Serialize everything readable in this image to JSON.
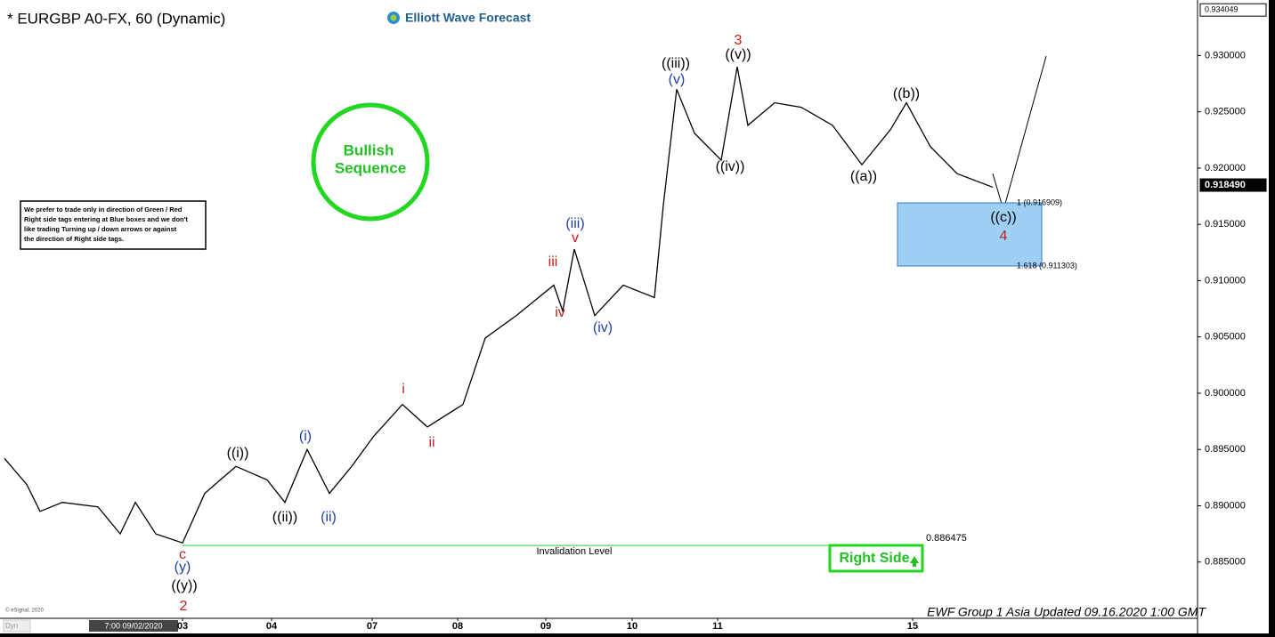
{
  "chart_data": {
    "type": "line",
    "title": "* EURGBP A0-FX, 60 (Dynamic)",
    "brand": "Elliott Wave Forecast",
    "badge": [
      "Bullish",
      "Sequence"
    ],
    "notice": [
      "We prefer to trade only in direction of Green / Red",
      "Right side tags entering at Blue boxes and we don't",
      "like trading Turning up / down arrows or against",
      "the direction of Right side tags."
    ],
    "right_side": "Right Side",
    "footer": "EWF Group 1 Asia Updated 09.16.2020 1:00 GMT",
    "copyright": "© eSignal, 2020",
    "cursor_label": "7:00 09/02/2020",
    "axis_corner": "Dyn",
    "xlim": [
      0,
      336.25
    ],
    "ylim": [
      0.88,
      0.9343
    ],
    "xticks": [
      {
        "value": 51.25,
        "label": "03"
      },
      {
        "value": 76.25,
        "label": "04"
      },
      {
        "value": 104.5,
        "label": "07"
      },
      {
        "value": 128.5,
        "label": "08"
      },
      {
        "value": 153.25,
        "label": "09"
      },
      {
        "value": 177.5,
        "label": "10"
      },
      {
        "value": 201.5,
        "label": "11"
      },
      {
        "value": 256.25,
        "label": "15"
      }
    ],
    "yticks": [
      {
        "value": 0.885,
        "label": "0.885000"
      },
      {
        "value": 0.89,
        "label": "0.890000"
      },
      {
        "value": 0.895,
        "label": "0.895000"
      },
      {
        "value": 0.9,
        "label": "0.900000"
      },
      {
        "value": 0.905,
        "label": "0.905000"
      },
      {
        "value": 0.91,
        "label": "0.910000"
      },
      {
        "value": 0.915,
        "label": "0.915000"
      },
      {
        "value": 0.92,
        "label": "0.920000"
      },
      {
        "value": 0.925,
        "label": "0.925000"
      },
      {
        "value": 0.93,
        "label": "0.930000"
      }
    ],
    "price_tags": [
      {
        "value": 0.934049,
        "label": "0.934049"
      },
      {
        "value": 0.91849,
        "label": "0.918490"
      }
    ],
    "series": [
      {
        "name": "EURGBP",
        "color": "#000000",
        "x": [
          1.25,
          7.5,
          11.25,
          17.5,
          27.5,
          33.75,
          38,
          43.75,
          51.25,
          57.5,
          66.25,
          75,
          80,
          86.25,
          92.5,
          98.75,
          105,
          113,
          120,
          130,
          136.25,
          145,
          155.5,
          158,
          161.25,
          167,
          175,
          183.75,
          186.25,
          190,
          195,
          202.5,
          207,
          210,
          217.5,
          225,
          233.75,
          242,
          250,
          254.5,
          261.25,
          268.75,
          278.75
        ],
        "values": [
          0.8942,
          0.8919,
          0.8895,
          0.8903,
          0.8899,
          0.8875,
          0.8903,
          0.8875,
          0.8867,
          0.8911,
          0.8935,
          0.8923,
          0.8903,
          0.895,
          0.8911,
          0.8935,
          0.8962,
          0.899,
          0.897,
          0.899,
          0.9049,
          0.9069,
          0.9096,
          0.9073,
          0.9128,
          0.9069,
          0.9096,
          0.9085,
          0.9167,
          0.927,
          0.9231,
          0.9207,
          0.929,
          0.9238,
          0.9258,
          0.9254,
          0.9238,
          0.9203,
          0.9234,
          0.9258,
          0.9219,
          0.9195,
          0.9183
        ]
      }
    ],
    "fib_box": [
      {
        "value": 0.916909,
        "label": "1 (0.916909)"
      },
      {
        "value": 0.911303,
        "label": "1.618 (0.911303)"
      }
    ],
    "invalidation": {
      "value": 0.886475,
      "label": "0.886475",
      "text": "Invalidation Level"
    },
    "wave_labels": [
      {
        "text": "((i))",
        "color": "#000000"
      },
      {
        "text": "((ii))",
        "color": "#000000"
      },
      {
        "text": "(i)",
        "color": "#1f3fa8"
      },
      {
        "text": "(ii)",
        "color": "#1f3fa8"
      },
      {
        "text": "c",
        "color": "#c0201c"
      },
      {
        "text": "(y)",
        "color": "#1f3fa8"
      },
      {
        "text": "((y))",
        "color": "#000000"
      },
      {
        "text": "2",
        "color": "#c0201c"
      },
      {
        "text": "i",
        "color": "#c0201c"
      },
      {
        "text": "ii",
        "color": "#c0201c"
      },
      {
        "text": "iii",
        "color": "#c0201c"
      },
      {
        "text": "iv",
        "color": "#c0201c"
      },
      {
        "text": "v",
        "color": "#c0201c"
      },
      {
        "text": "(iii)",
        "color": "#1f3fa8"
      },
      {
        "text": "(iv)",
        "color": "#1f3fa8"
      },
      {
        "text": "(v)",
        "color": "#1f3fa8"
      },
      {
        "text": "((iii))",
        "color": "#000000"
      },
      {
        "text": "((v))",
        "color": "#000000"
      },
      {
        "text": "3",
        "color": "#c0201c"
      },
      {
        "text": "((iv))",
        "color": "#000000"
      },
      {
        "text": "((a))",
        "color": "#000000"
      },
      {
        "text": "((b))",
        "color": "#000000"
      },
      {
        "text": "((c))",
        "color": "#000000"
      },
      {
        "text": "4",
        "color": "#c0201c"
      }
    ]
  }
}
